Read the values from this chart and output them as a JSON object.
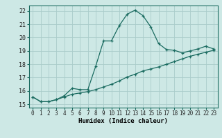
{
  "xlabel": "Humidex (Indice chaleur)",
  "ylabel": "",
  "background_color": "#cde8e5",
  "grid_color": "#aaccca",
  "line_color": "#1a6b60",
  "xlim": [
    -0.5,
    23.5
  ],
  "ylim": [
    14.75,
    22.4
  ],
  "yticks": [
    15,
    16,
    17,
    18,
    19,
    20,
    21,
    22
  ],
  "xticks": [
    0,
    1,
    2,
    3,
    4,
    5,
    6,
    7,
    8,
    9,
    10,
    11,
    12,
    13,
    14,
    15,
    16,
    17,
    18,
    19,
    20,
    21,
    22,
    23
  ],
  "line1_x": [
    0,
    1,
    2,
    3,
    4,
    5,
    6,
    7,
    8,
    9,
    10,
    11,
    12,
    13,
    14,
    15,
    16,
    17,
    18,
    19,
    20,
    21,
    22,
    23
  ],
  "line1_y": [
    15.55,
    15.2,
    15.2,
    15.35,
    15.65,
    16.2,
    16.1,
    16.1,
    17.85,
    19.75,
    19.75,
    20.9,
    21.75,
    22.05,
    21.65,
    20.8,
    19.55,
    19.1,
    19.05,
    18.85,
    19.0,
    19.15,
    19.35,
    19.15
  ],
  "line2_x": [
    0,
    1,
    2,
    3,
    4,
    5,
    6,
    7,
    8,
    9,
    10,
    11,
    12,
    13,
    14,
    15,
    16,
    17,
    18,
    19,
    20,
    21,
    22,
    23
  ],
  "line2_y": [
    15.55,
    15.2,
    15.2,
    15.35,
    15.55,
    15.75,
    15.85,
    15.95,
    16.1,
    16.3,
    16.5,
    16.75,
    17.05,
    17.25,
    17.5,
    17.65,
    17.8,
    18.0,
    18.2,
    18.4,
    18.6,
    18.75,
    18.9,
    19.05
  ],
  "tick_fontsize": 5.5,
  "xlabel_fontsize": 6.5
}
